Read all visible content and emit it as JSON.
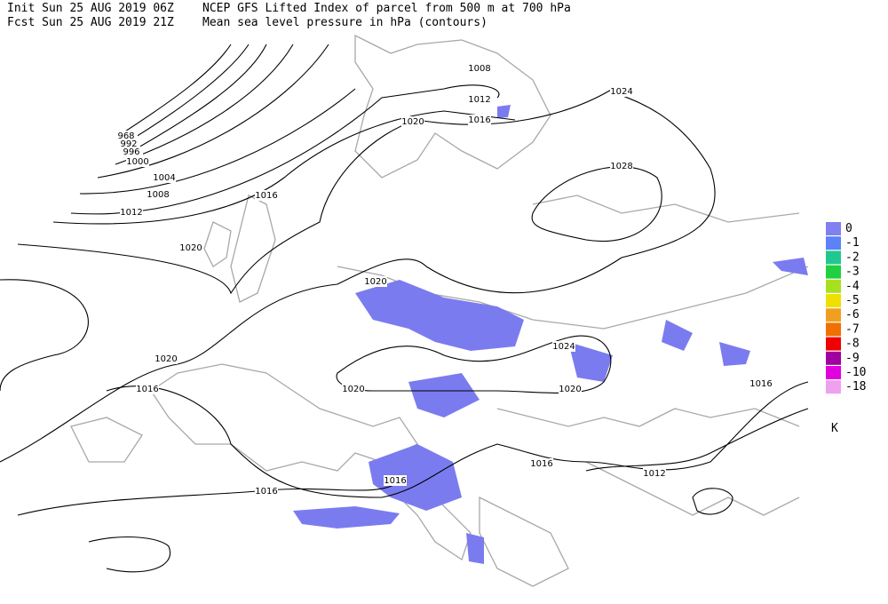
{
  "header": {
    "init": "Init  Sun 25 AUG 2019 06Z",
    "fcst": "Fcst Sun 25 AUG 2019 21Z",
    "title": "NCEP GFS Lifted Index of parcel from 500 m at 700 hPa",
    "subtitle": "Mean sea level pressure in hPa (contours)"
  },
  "contour_labels": [
    968,
    992,
    996,
    1000,
    1004,
    1008,
    1012,
    1016,
    1020,
    1020,
    1016,
    1016,
    1008,
    1012,
    1016,
    1020,
    1024,
    1028,
    1020,
    1020,
    1024,
    1020,
    1016,
    1012,
    1016,
    1016
  ],
  "legend": {
    "levels": [
      0,
      -1,
      -2,
      -3,
      -4,
      -5,
      -6,
      -7,
      -8,
      -9,
      -10,
      -18
    ],
    "colors": [
      "#8080f0",
      "#5c82f8",
      "#20c890",
      "#20d040",
      "#a8e020",
      "#f0e000",
      "#f0a020",
      "#f07000",
      "#f00000",
      "#a000a0",
      "#e000e0",
      "#f0a0f0"
    ],
    "unit": "K"
  }
}
